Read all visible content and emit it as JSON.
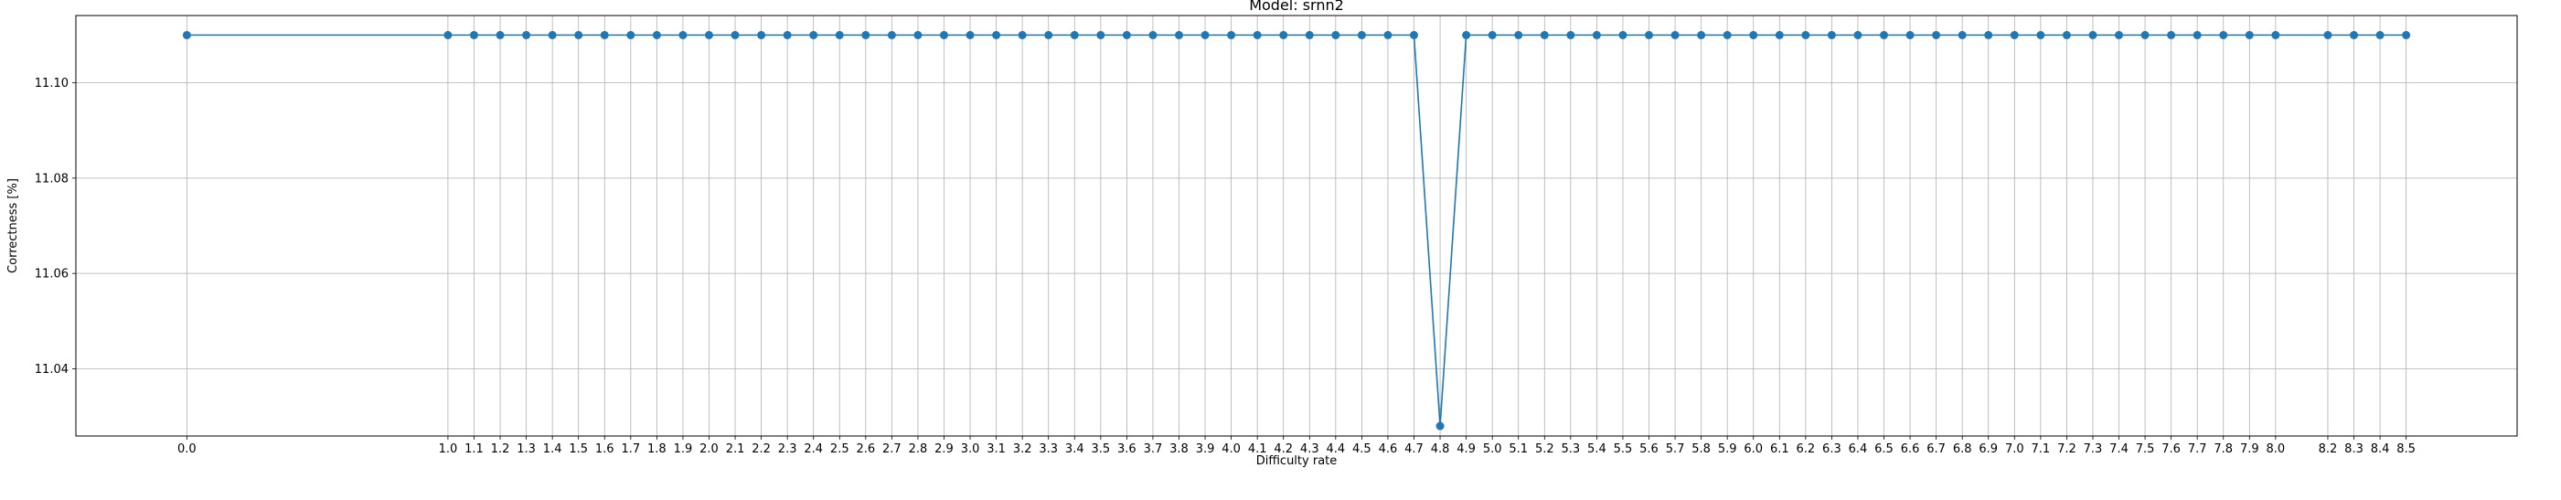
{
  "chart_data": {
    "type": "line",
    "title": "Model: srnn2",
    "xlabel": "Difficulty rate",
    "ylabel": "Correctness [%]",
    "grid": true,
    "xlim": [
      -0.425,
      8.925
    ],
    "ylim": [
      11.0259,
      11.1141
    ],
    "yticks": [
      11.04,
      11.06,
      11.08,
      11.1
    ],
    "ytick_labels": [
      "11.04",
      "11.06",
      "11.08",
      "11.10"
    ],
    "line_color": "#1f77b4",
    "series": [
      {
        "x": [
          0.0,
          1.0,
          1.1,
          1.2,
          1.3,
          1.4,
          1.5,
          1.6,
          1.7,
          1.8,
          1.9,
          2.0,
          2.1,
          2.2,
          2.3,
          2.4,
          2.5,
          2.6,
          2.7,
          2.8,
          2.9,
          3.0,
          3.1,
          3.2,
          3.3,
          3.4,
          3.5,
          3.6,
          3.7,
          3.8,
          3.9,
          4.0,
          4.1,
          4.2,
          4.3,
          4.4,
          4.5,
          4.6,
          4.7,
          4.8,
          4.9,
          5.0,
          5.1,
          5.2,
          5.3,
          5.4,
          5.5,
          5.6,
          5.7,
          5.8,
          5.9,
          6.0,
          6.1,
          6.2,
          6.3,
          6.4,
          6.5,
          6.6,
          6.7,
          6.8,
          6.9,
          7.0,
          7.1,
          7.2,
          7.3,
          7.4,
          7.5,
          7.6,
          7.7,
          7.8,
          7.9,
          8.0,
          8.2,
          8.3,
          8.4,
          8.5
        ],
        "y": [
          11.11,
          11.11,
          11.11,
          11.11,
          11.11,
          11.11,
          11.11,
          11.11,
          11.11,
          11.11,
          11.11,
          11.11,
          11.11,
          11.11,
          11.11,
          11.11,
          11.11,
          11.11,
          11.11,
          11.11,
          11.11,
          11.11,
          11.11,
          11.11,
          11.11,
          11.11,
          11.11,
          11.11,
          11.11,
          11.11,
          11.11,
          11.11,
          11.11,
          11.11,
          11.11,
          11.11,
          11.11,
          11.11,
          11.11,
          11.028,
          11.11,
          11.11,
          11.11,
          11.11,
          11.11,
          11.11,
          11.11,
          11.11,
          11.11,
          11.11,
          11.11,
          11.11,
          11.11,
          11.11,
          11.11,
          11.11,
          11.11,
          11.11,
          11.11,
          11.11,
          11.11,
          11.11,
          11.11,
          11.11,
          11.11,
          11.11,
          11.11,
          11.11,
          11.11,
          11.11,
          11.11,
          11.11,
          11.11,
          11.11,
          11.11,
          11.11
        ]
      }
    ],
    "xtick_labels": [
      "0.0",
      "1.0",
      "1.1",
      "1.2",
      "1.3",
      "1.4",
      "1.5",
      "1.6",
      "1.7",
      "1.8",
      "1.9",
      "2.0",
      "2.1",
      "2.2",
      "2.3",
      "2.4",
      "2.5",
      "2.6",
      "2.7",
      "2.8",
      "2.9",
      "3.0",
      "3.1",
      "3.2",
      "3.3",
      "3.4",
      "3.5",
      "3.6",
      "3.7",
      "3.8",
      "3.9",
      "4.0",
      "4.1",
      "4.2",
      "4.3",
      "4.4",
      "4.5",
      "4.6",
      "4.7",
      "4.8",
      "4.9",
      "5.0",
      "5.1",
      "5.2",
      "5.3",
      "5.4",
      "5.5",
      "5.6",
      "5.7",
      "5.8",
      "5.9",
      "6.0",
      "6.1",
      "6.2",
      "6.3",
      "6.4",
      "6.5",
      "6.6",
      "6.7",
      "6.8",
      "6.9",
      "7.0",
      "7.1",
      "7.2",
      "7.3",
      "7.4",
      "7.5",
      "7.6",
      "7.7",
      "7.8",
      "7.9",
      "8.0",
      "8.2",
      "8.3",
      "8.4",
      "8.5"
    ]
  }
}
